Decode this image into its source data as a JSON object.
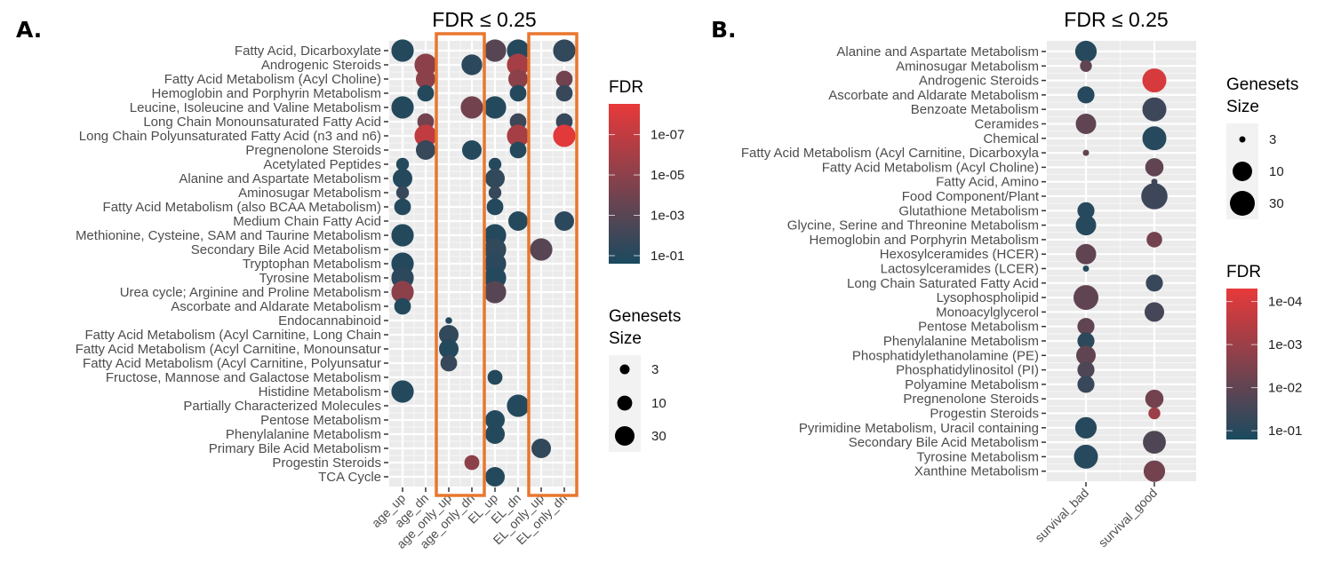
{
  "chart_data": [
    {
      "type": "scatter",
      "panel_label": "A.",
      "title": "FDR ≤ 0.25",
      "categories_x": [
        "age_up",
        "age_dn",
        "age_only_up",
        "age_only_dn",
        "EL_up",
        "EL_dn",
        "EL_only_up",
        "EL_only_dn"
      ],
      "categories_y": [
        "Fatty Acid, Dicarboxylate",
        "Androgenic Steroids",
        "Fatty Acid Metabolism (Acyl Choline)",
        "Hemoglobin and Porphyrin Metabolism",
        "Leucine, Isoleucine and Valine Metabolism",
        "Long Chain Monounsaturated Fatty Acid",
        "Long Chain Polyunsaturated Fatty Acid (n3 and n6)",
        "Pregnenolone Steroids",
        "Acetylated Peptides",
        "Alanine and Aspartate Metabolism",
        "Aminosugar Metabolism",
        "Fatty Acid Metabolism (also BCAA Metabolism)",
        "Medium Chain Fatty Acid",
        "Methionine, Cysteine, SAM and Taurine Metabolism",
        "Secondary Bile Acid Metabolism",
        "Tryptophan Metabolism",
        "Tyrosine Metabolism",
        "Urea cycle; Arginine and Proline Metabolism",
        "Ascorbate and Aldarate Metabolism",
        "Endocannabinoid",
        "Fatty Acid Metabolism (Acyl Carnitine, Long Chain ",
        "Fatty Acid Metabolism (Acyl Carnitine, Monounsatur",
        "Fatty Acid Metabolism (Acyl Carnitine, Polyunsatur",
        "Fructose, Mannose and Galactose Metabolism",
        "Histidine Metabolism",
        "Partially Characterized Molecules",
        "Pentose Metabolism",
        "Phenylalanine Metabolism",
        "Primary Bile Acid Metabolism",
        "Progestin Steroids",
        "TCA Cycle"
      ],
      "highlighted_columns": [
        [
          "age_only_up",
          "age_only_dn"
        ],
        [
          "EL_only_up",
          "EL_only_dn"
        ]
      ],
      "highlight_color": "#e8772e",
      "points": [
        {
          "y": 0,
          "x": "age_up",
          "fdr": 0.1,
          "size": 60
        },
        {
          "y": 0,
          "x": "EL_up",
          "fdr": 0.001,
          "size": 60
        },
        {
          "y": 0,
          "x": "EL_dn",
          "fdr": 0.1,
          "size": 60
        },
        {
          "y": 0,
          "x": "EL_only_dn",
          "fdr": 0.03,
          "size": 60
        },
        {
          "y": 1,
          "x": "age_dn",
          "fdr": 1e-05,
          "size": 60
        },
        {
          "y": 1,
          "x": "age_only_dn",
          "fdr": 0.05,
          "size": 40
        },
        {
          "y": 1,
          "x": "EL_dn",
          "fdr": 1e-06,
          "size": 60
        },
        {
          "y": 2,
          "x": "age_dn",
          "fdr": 1e-05,
          "size": 30
        },
        {
          "y": 2,
          "x": "EL_dn",
          "fdr": 1e-05,
          "size": 30
        },
        {
          "y": 2,
          "x": "EL_only_dn",
          "fdr": 0.0001,
          "size": 15
        },
        {
          "y": 3,
          "x": "age_dn",
          "fdr": 0.1,
          "size": 15
        },
        {
          "y": 3,
          "x": "EL_dn",
          "fdr": 0.1,
          "size": 15
        },
        {
          "y": 3,
          "x": "EL_only_dn",
          "fdr": 0.02,
          "size": 15
        },
        {
          "y": 4,
          "x": "age_up",
          "fdr": 0.1,
          "size": 60
        },
        {
          "y": 4,
          "x": "age_only_dn",
          "fdr": 0.0001,
          "size": 60
        },
        {
          "y": 4,
          "x": "EL_up",
          "fdr": 0.1,
          "size": 60
        },
        {
          "y": 5,
          "x": "age_dn",
          "fdr": 0.0001,
          "size": 15
        },
        {
          "y": 5,
          "x": "EL_dn",
          "fdr": 0.01,
          "size": 15
        },
        {
          "y": 5,
          "x": "EL_only_dn",
          "fdr": 0.02,
          "size": 15
        },
        {
          "y": 6,
          "x": "age_dn",
          "fdr": 1e-07,
          "size": 60
        },
        {
          "y": 6,
          "x": "EL_dn",
          "fdr": 1e-06,
          "size": 60
        },
        {
          "y": 6,
          "x": "EL_only_dn",
          "fdr": 5e-09,
          "size": 60
        },
        {
          "y": 7,
          "x": "age_dn",
          "fdr": 0.02,
          "size": 30
        },
        {
          "y": 7,
          "x": "age_only_dn",
          "fdr": 0.1,
          "size": 30
        },
        {
          "y": 7,
          "x": "EL_dn",
          "fdr": 0.1,
          "size": 15
        },
        {
          "y": 8,
          "x": "age_up",
          "fdr": 0.1,
          "size": 6
        },
        {
          "y": 8,
          "x": "EL_up",
          "fdr": 0.1,
          "size": 6
        },
        {
          "y": 9,
          "x": "age_up",
          "fdr": 0.1,
          "size": 30
        },
        {
          "y": 9,
          "x": "EL_up",
          "fdr": 0.03,
          "size": 30
        },
        {
          "y": 10,
          "x": "age_up",
          "fdr": 0.02,
          "size": 6
        },
        {
          "y": 10,
          "x": "EL_up",
          "fdr": 0.02,
          "size": 6
        },
        {
          "y": 11,
          "x": "age_up",
          "fdr": 0.1,
          "size": 15
        },
        {
          "y": 11,
          "x": "EL_up",
          "fdr": 0.1,
          "size": 15
        },
        {
          "y": 12,
          "x": "EL_dn",
          "fdr": 0.1,
          "size": 30
        },
        {
          "y": 12,
          "x": "EL_only_dn",
          "fdr": 0.05,
          "size": 30
        },
        {
          "y": 13,
          "x": "age_up",
          "fdr": 0.1,
          "size": 60
        },
        {
          "y": 13,
          "x": "EL_up",
          "fdr": 0.1,
          "size": 60
        },
        {
          "y": 14,
          "x": "EL_up",
          "fdr": 0.03,
          "size": 60
        },
        {
          "y": 14,
          "x": "EL_only_up",
          "fdr": 0.001,
          "size": 60
        },
        {
          "y": 15,
          "x": "age_up",
          "fdr": 0.1,
          "size": 60
        },
        {
          "y": 15,
          "x": "EL_up",
          "fdr": 0.05,
          "size": 60
        },
        {
          "y": 16,
          "x": "age_up",
          "fdr": 0.05,
          "size": 60
        },
        {
          "y": 16,
          "x": "EL_up",
          "fdr": 0.1,
          "size": 60
        },
        {
          "y": 17,
          "x": "age_up",
          "fdr": 1e-05,
          "size": 60
        },
        {
          "y": 17,
          "x": "EL_up",
          "fdr": 0.001,
          "size": 60
        },
        {
          "y": 18,
          "x": "age_up",
          "fdr": 0.1,
          "size": 15
        },
        {
          "y": 19,
          "x": "age_only_up",
          "fdr": 0.1,
          "size": 1.5
        },
        {
          "y": 20,
          "x": "age_only_up",
          "fdr": 0.03,
          "size": 30
        },
        {
          "y": 21,
          "x": "age_only_up",
          "fdr": 0.1,
          "size": 30
        },
        {
          "y": 22,
          "x": "age_only_up",
          "fdr": 0.02,
          "size": 15
        },
        {
          "y": 23,
          "x": "EL_up",
          "fdr": 0.1,
          "size": 10
        },
        {
          "y": 24,
          "x": "age_up",
          "fdr": 0.1,
          "size": 60
        },
        {
          "y": 25,
          "x": "EL_dn",
          "fdr": 0.1,
          "size": 60
        },
        {
          "y": 26,
          "x": "EL_up",
          "fdr": 0.1,
          "size": 30
        },
        {
          "y": 27,
          "x": "EL_up",
          "fdr": 0.1,
          "size": 30
        },
        {
          "y": 28,
          "x": "EL_only_up",
          "fdr": 0.03,
          "size": 30
        },
        {
          "y": 29,
          "x": "age_only_dn",
          "fdr": 1e-05,
          "size": 10
        },
        {
          "y": 30,
          "x": "EL_up",
          "fdr": 0.1,
          "size": 30
        }
      ],
      "color_legend": {
        "title": "FDR",
        "scale": "log",
        "ticks": [
          "1e-07",
          "1e-05",
          "1e-03",
          "1e-01"
        ],
        "tick_values": [
          1e-07,
          1e-05,
          0.001,
          0.1
        ],
        "range": [
          3e-09,
          0.25
        ],
        "low_color": "#e8393a",
        "high_color": "#1a4a5f"
      },
      "size_legend": {
        "title_line1": "Genesets",
        "title_line2": "Size",
        "labels": [
          "3",
          "10",
          "30"
        ],
        "values": [
          3,
          10,
          30
        ]
      }
    },
    {
      "type": "scatter",
      "panel_label": "B.",
      "title": "FDR ≤ 0.25",
      "categories_x": [
        "survival_bad",
        "survival_good"
      ],
      "categories_y": [
        "Alanine and Aspartate Metabolism",
        "Aminosugar Metabolism",
        "Androgenic Steroids",
        "Ascorbate and Aldarate Metabolism",
        "Benzoate Metabolism",
        "Ceramides",
        "Chemical",
        "Fatty Acid Metabolism (Acyl Carnitine, Dicarboxyla",
        "Fatty Acid Metabolism (Acyl Choline)",
        "Fatty Acid, Amino",
        "Food Component/Plant",
        "Glutathione Metabolism",
        "Glycine, Serine and Threonine Metabolism",
        "Hemoglobin and Porphyrin Metabolism",
        "Hexosylceramides (HCER)",
        "Lactosylceramides (LCER)",
        "Long Chain Saturated Fatty Acid",
        "Lysophospholipid",
        "Monoacylglycerol",
        "Pentose Metabolism",
        "Phenylalanine Metabolism",
        "Phosphatidylethanolamine (PE)",
        "Phosphatidylinositol (PI)",
        "Polyamine Metabolism",
        "Pregnenolone Steroids",
        "Progestin Steroids",
        "Pyrimidine Metabolism, Uracil containing",
        "Secondary Bile Acid Metabolism",
        "Tyrosine Metabolism",
        "Xanthine Metabolism"
      ],
      "points": [
        {
          "y": 0,
          "x": "survival_bad",
          "fdr": 0.1,
          "size": 15
        },
        {
          "y": 1,
          "x": "survival_bad",
          "fdr": 0.01,
          "size": 5
        },
        {
          "y": 2,
          "x": "survival_good",
          "fdr": 0.0001,
          "size": 25
        },
        {
          "y": 3,
          "x": "survival_bad",
          "fdr": 0.1,
          "size": 8
        },
        {
          "y": 4,
          "x": "survival_good",
          "fdr": 0.04,
          "size": 25
        },
        {
          "y": 5,
          "x": "survival_bad",
          "fdr": 0.01,
          "size": 12
        },
        {
          "y": 6,
          "x": "survival_good",
          "fdr": 0.1,
          "size": 25
        },
        {
          "y": 7,
          "x": "survival_bad",
          "fdr": 0.01,
          "size": 3
        },
        {
          "y": 8,
          "x": "survival_good",
          "fdr": 0.01,
          "size": 9
        },
        {
          "y": 9,
          "x": "survival_good",
          "fdr": 0.04,
          "size": 3
        },
        {
          "y": 10,
          "x": "survival_good",
          "fdr": 0.04,
          "size": 40
        },
        {
          "y": 11,
          "x": "survival_bad",
          "fdr": 0.1,
          "size": 8
        },
        {
          "y": 12,
          "x": "survival_bad",
          "fdr": 0.1,
          "size": 12
        },
        {
          "y": 13,
          "x": "survival_good",
          "fdr": 0.005,
          "size": 7
        },
        {
          "y": 14,
          "x": "survival_bad",
          "fdr": 0.01,
          "size": 12
        },
        {
          "y": 15,
          "x": "survival_bad",
          "fdr": 0.1,
          "size": 3
        },
        {
          "y": 16,
          "x": "survival_good",
          "fdr": 0.05,
          "size": 8
        },
        {
          "y": 17,
          "x": "survival_bad",
          "fdr": 0.01,
          "size": 30
        },
        {
          "y": 18,
          "x": "survival_good",
          "fdr": 0.03,
          "size": 10
        },
        {
          "y": 19,
          "x": "survival_bad",
          "fdr": 0.01,
          "size": 8
        },
        {
          "y": 20,
          "x": "survival_bad",
          "fdr": 0.08,
          "size": 8
        },
        {
          "y": 21,
          "x": "survival_bad",
          "fdr": 0.01,
          "size": 10
        },
        {
          "y": 22,
          "x": "survival_bad",
          "fdr": 0.02,
          "size": 8
        },
        {
          "y": 23,
          "x": "survival_bad",
          "fdr": 0.05,
          "size": 8
        },
        {
          "y": 24,
          "x": "survival_good",
          "fdr": 0.005,
          "size": 9
        },
        {
          "y": 25,
          "x": "survival_good",
          "fdr": 0.001,
          "size": 5
        },
        {
          "y": 26,
          "x": "survival_bad",
          "fdr": 0.1,
          "size": 15
        },
        {
          "y": 27,
          "x": "survival_good",
          "fdr": 0.02,
          "size": 20
        },
        {
          "y": 28,
          "x": "survival_bad",
          "fdr": 0.1,
          "size": 25
        },
        {
          "y": 29,
          "x": "survival_good",
          "fdr": 0.005,
          "size": 15
        }
      ],
      "color_legend": {
        "title": "FDR",
        "scale": "log",
        "ticks": [
          "1e-04",
          "1e-03",
          "1e-02",
          "1e-01"
        ],
        "tick_values": [
          0.0001,
          0.001,
          0.01,
          0.1
        ],
        "range": [
          5e-05,
          0.16
        ],
        "low_color": "#e8393a",
        "high_color": "#1a4a5f"
      },
      "size_legend": {
        "title_line1": "Genesets",
        "title_line2": "Size",
        "labels": [
          "3",
          "10",
          "30"
        ],
        "values": [
          3,
          10,
          30
        ]
      }
    }
  ]
}
